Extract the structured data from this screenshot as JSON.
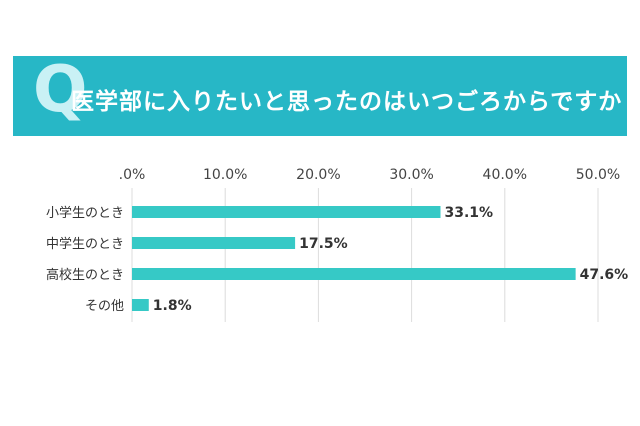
{
  "banner": {
    "q_letter": "Q",
    "title": "医学部に入りたいと思ったのはいつごろからですか"
  },
  "colors": {
    "banner": "#27b7c6",
    "bar": "#36c9c6",
    "grid": "#dcdcdc"
  },
  "chart_data": {
    "type": "bar",
    "orientation": "horizontal",
    "categories": [
      "小学生のとき",
      "中学生のとき",
      "高校生のとき",
      "その他"
    ],
    "values": [
      33.1,
      17.5,
      47.6,
      1.8
    ],
    "value_labels": [
      "33.1%",
      "17.5%",
      "47.6%",
      "1.8%"
    ],
    "xticks": [
      ".0%",
      "10.0%",
      "20.0%",
      "30.0%",
      "40.0%",
      "50.0%"
    ],
    "xlim": [
      0,
      50
    ],
    "grid": true,
    "legend": "none"
  }
}
